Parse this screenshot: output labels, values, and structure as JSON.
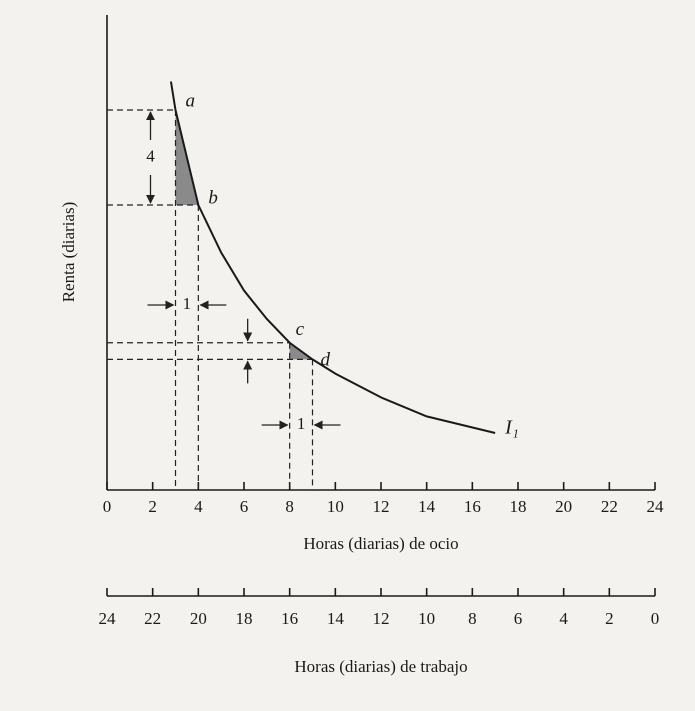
{
  "chart_data": {
    "type": "line",
    "xlabel": "Horas (diarias) de ocio",
    "x2label": "Horas (diarias) de trabajo",
    "ylabel": "Renta (diarias)",
    "xlim": [
      0,
      24
    ],
    "xticks": [
      0,
      2,
      4,
      6,
      8,
      10,
      12,
      14,
      16,
      18,
      20,
      22,
      24
    ],
    "x2ticks": [
      24,
      22,
      20,
      18,
      16,
      14,
      12,
      10,
      8,
      6,
      4,
      2,
      0
    ],
    "ylim": [
      0,
      20
    ],
    "x": [
      2.8,
      3,
      4,
      5,
      6,
      7,
      8,
      9,
      10,
      12,
      14,
      17
    ],
    "series": [
      {
        "name": "I₁",
        "color": "#1a1a1a",
        "values": [
          17.2,
          16,
          12,
          10,
          8.4,
          7.2,
          6.2,
          5.5,
          4.9,
          3.9,
          3.1,
          2.4
        ]
      }
    ],
    "points": [
      {
        "label": "a",
        "x": 3,
        "y": 16
      },
      {
        "label": "b",
        "x": 4,
        "y": 12
      },
      {
        "label": "c",
        "x": 8,
        "y": 6.2
      },
      {
        "label": "d",
        "x": 9,
        "y": 5.5
      }
    ],
    "annotations": [
      "4",
      "1",
      "1"
    ]
  }
}
